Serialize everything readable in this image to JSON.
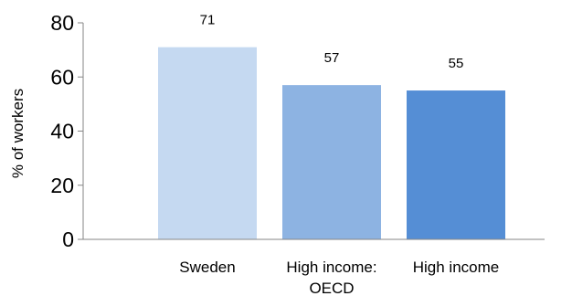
{
  "chart_data": {
    "type": "bar",
    "categories": [
      [
        "Sweden"
      ],
      [
        "High income:",
        "OECD"
      ],
      [
        "High income"
      ]
    ],
    "values": [
      71,
      57,
      55
    ],
    "data_labels": [
      "71",
      "57",
      "55"
    ],
    "bar_colors": [
      "#c5d9f1",
      "#8db3e2",
      "#558ed5"
    ],
    "title": "",
    "xlabel": "",
    "ylabel": "% of workers",
    "ylim": [
      0,
      80
    ],
    "yticks": [
      0,
      20,
      40,
      60,
      80
    ],
    "ytick_labels": [
      "0",
      "20",
      "40",
      "60",
      "80"
    ],
    "grid": false,
    "legend": "none"
  }
}
